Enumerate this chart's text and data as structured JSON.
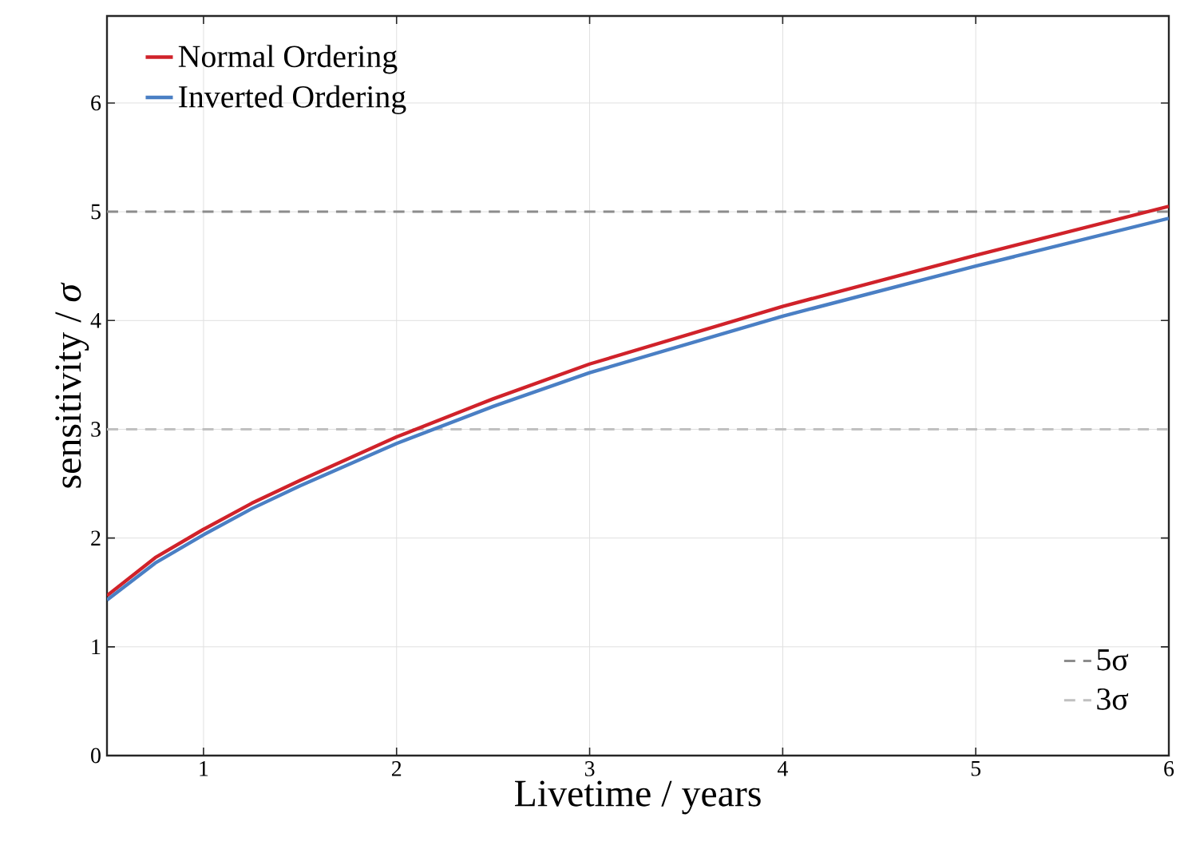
{
  "chart_data": {
    "type": "line",
    "xlabel": "Livetime / years",
    "ylabel": "sensitivity / *σ*",
    "x": [
      0.5,
      0.75,
      1,
      1.25,
      1.5,
      2,
      2.5,
      3,
      4,
      5,
      6
    ],
    "series": [
      {
        "name": "Normal Ordering",
        "color": "#d0222a",
        "values": [
          1.47,
          1.82,
          2.08,
          2.32,
          2.53,
          2.93,
          3.28,
          3.6,
          4.13,
          4.6,
          5.05
        ]
      },
      {
        "name": "Inverted Ordering",
        "color": "#4a7fc4",
        "values": [
          1.43,
          1.77,
          2.03,
          2.27,
          2.48,
          2.87,
          3.21,
          3.52,
          4.04,
          4.5,
          4.94
        ]
      }
    ],
    "xlim": [
      0.5,
      6
    ],
    "ylim": [
      0,
      6.8
    ],
    "xticks": [
      1,
      2,
      3,
      4,
      5,
      6
    ],
    "yticks": [
      0,
      1,
      2,
      3,
      4,
      5,
      6
    ],
    "ref_lines": [
      {
        "axis": "y",
        "value": 5,
        "label": "5σ",
        "color": "#8c8c8c",
        "line_style": "dashed"
      },
      {
        "axis": "y",
        "value": 3,
        "label": "3σ",
        "color": "#c0c0c0",
        "line_style": "dashed"
      }
    ],
    "grid": true,
    "legend": "top left",
    "marker": "none",
    "line_style": "solid"
  }
}
